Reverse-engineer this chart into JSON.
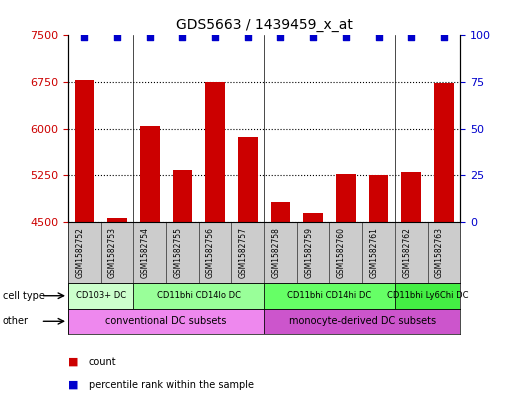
{
  "title": "GDS5663 / 1439459_x_at",
  "samples": [
    "GSM1582752",
    "GSM1582753",
    "GSM1582754",
    "GSM1582755",
    "GSM1582756",
    "GSM1582757",
    "GSM1582758",
    "GSM1582759",
    "GSM1582760",
    "GSM1582761",
    "GSM1582762",
    "GSM1582763"
  ],
  "counts": [
    6780,
    4560,
    6050,
    5340,
    6750,
    5860,
    4830,
    4640,
    5270,
    5260,
    5310,
    6730
  ],
  "percentiles": [
    99,
    99,
    99,
    99,
    99,
    99,
    99,
    99,
    99,
    99,
    99,
    99
  ],
  "ylim_left": [
    4500,
    7500
  ],
  "ylim_right": [
    0,
    100
  ],
  "yticks_left": [
    4500,
    5250,
    6000,
    6750,
    7500
  ],
  "yticks_right": [
    0,
    25,
    50,
    75,
    100
  ],
  "bar_color": "#cc0000",
  "dot_color": "#0000cc",
  "cell_type_groups": [
    {
      "label": "CD103+ DC",
      "start": 0,
      "end": 2,
      "color": "#ccffcc"
    },
    {
      "label": "CD11bhi CD14lo DC",
      "start": 2,
      "end": 6,
      "color": "#99ff99"
    },
    {
      "label": "CD11bhi CD14hi DC",
      "start": 6,
      "end": 10,
      "color": "#66ff66"
    },
    {
      "label": "CD11bhi Ly6Chi DC",
      "start": 10,
      "end": 12,
      "color": "#44ee44"
    }
  ],
  "other_groups": [
    {
      "label": "conventional DC subsets",
      "start": 0,
      "end": 6,
      "color": "#ee88ee"
    },
    {
      "label": "monocyte-derived DC subsets",
      "start": 6,
      "end": 12,
      "color": "#cc55cc"
    }
  ],
  "cell_type_label": "cell type",
  "other_label": "other",
  "legend_count_label": "count",
  "legend_pct_label": "percentile rank within the sample"
}
